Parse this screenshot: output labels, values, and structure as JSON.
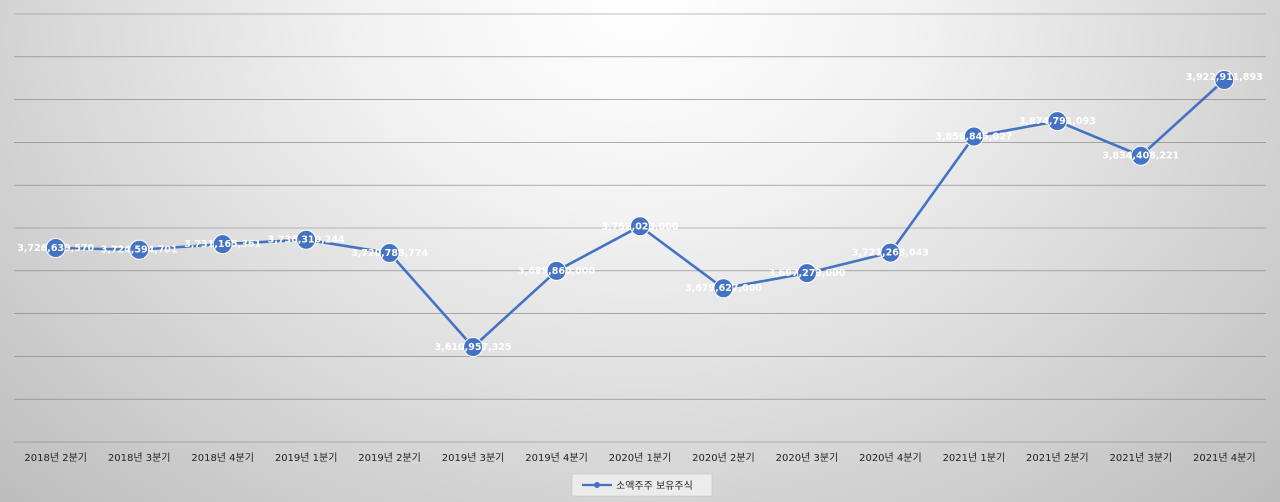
{
  "chart_data": {
    "type": "line",
    "title": "",
    "xlabel": "",
    "ylabel": "",
    "ylim": [
      3500000000,
      4000000000
    ],
    "grid": true,
    "legend_position": "bottom",
    "categories": [
      "2018년 2분기",
      "2018년 3분기",
      "2018년 4분기",
      "2019년 1분기",
      "2019년 2분기",
      "2019년 3분기",
      "2019년 4분기",
      "2020년 1분기",
      "2020년 2분기",
      "2020년 3분기",
      "2020년 4분기",
      "2021년 1분기",
      "2021년 2분기",
      "2021년 3분기",
      "2021년 4분기"
    ],
    "series": [
      {
        "name": "소액주주 보유주식",
        "color": "#4472c4",
        "values": [
          3726639570,
          3724594701,
          3731165361,
          3736310244,
          3720788774,
          3610957325,
          3699860000,
          3752023000,
          3679627000,
          3697273000,
          3721268043,
          3856845027,
          3874791093,
          3834408221,
          3922911893
        ],
        "labels": [
          "3,726,639,570",
          "3,724,594,701",
          "3,731,165,361",
          "3,736,310,244",
          "3,720,788,774",
          "3,610,957,325",
          "3,699,860,000",
          "3,752,023,000",
          "3,679,627,000",
          "3,697,273,000",
          "3,721,268,043",
          "3,856,845,027",
          "3,874,791,093",
          "3,834,408,221",
          "3,922,911,893"
        ]
      }
    ]
  },
  "colors": {
    "line": "#4472c4",
    "marker_fill": "#4472c4",
    "marker_stroke": "#ffffff",
    "grid": "#7f7f7f"
  }
}
